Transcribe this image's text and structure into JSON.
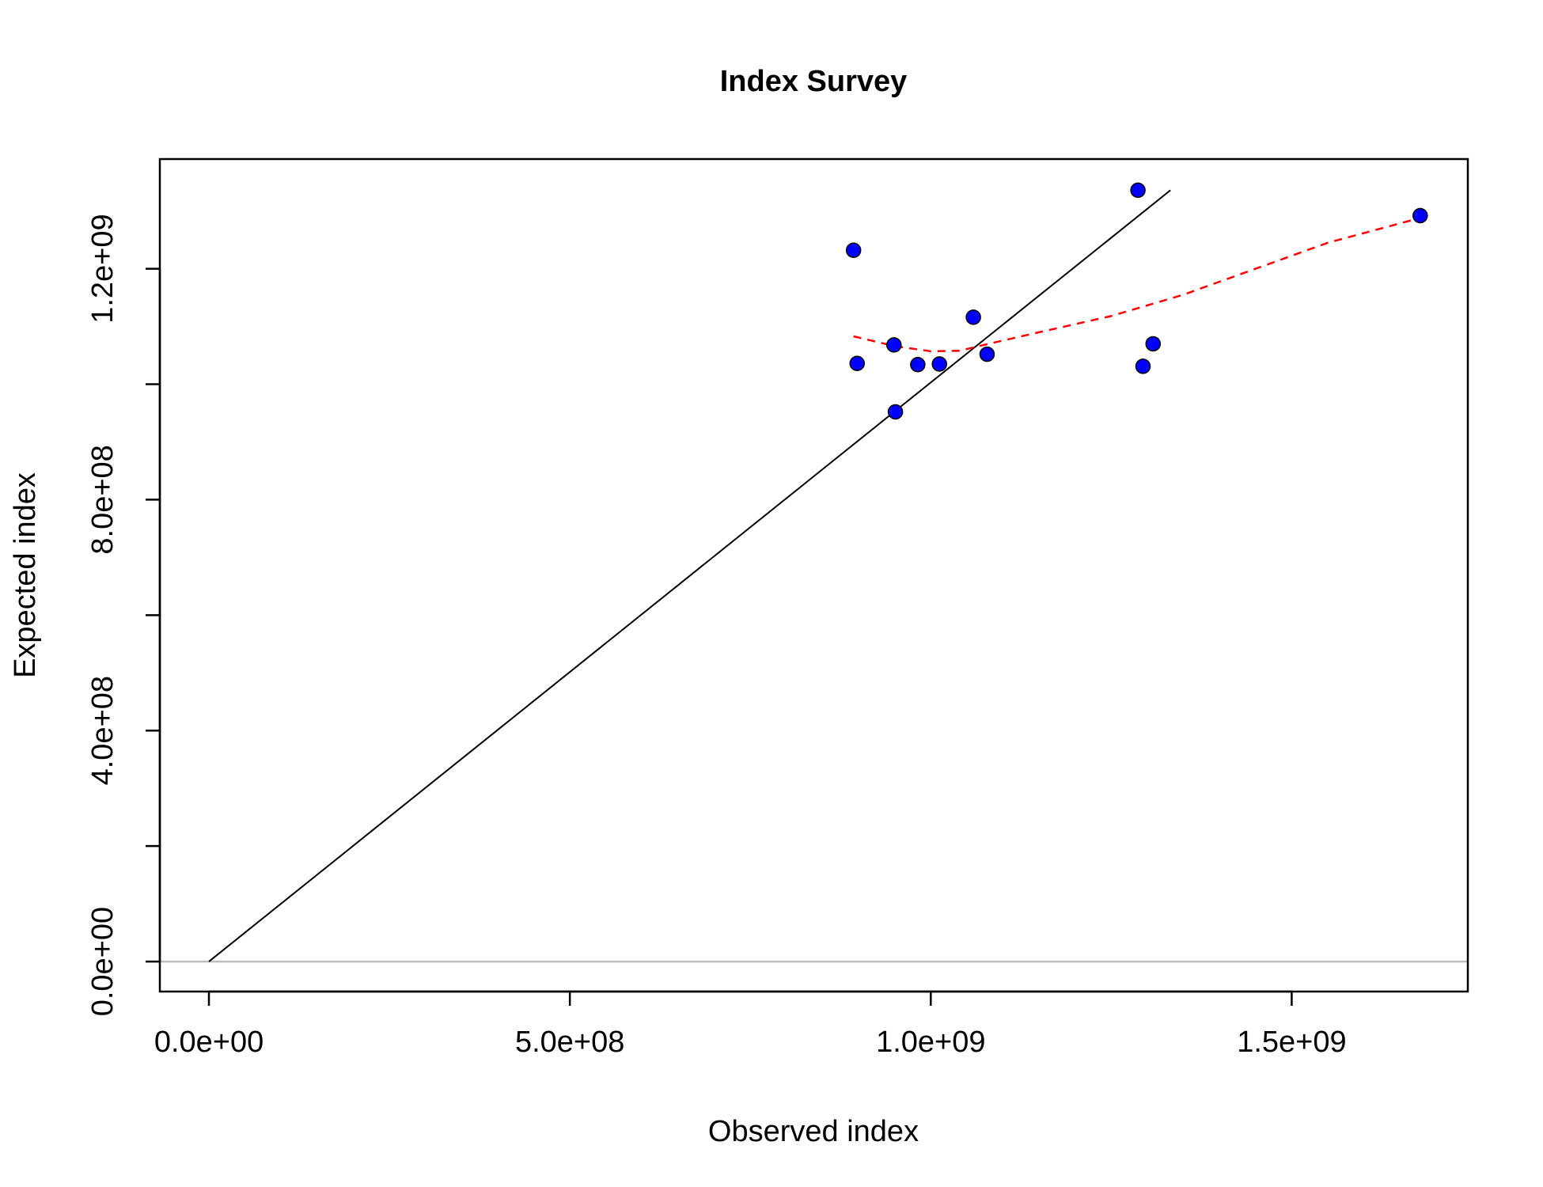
{
  "chart_data": {
    "type": "scatter",
    "title": "Index Survey",
    "xlabel": "Observed index",
    "ylabel": "Expected index",
    "xlim": [
      -68000000,
      1744000000
    ],
    "ylim": [
      -52000000,
      1390000000
    ],
    "x_ticks": [
      0,
      500000000,
      1000000000,
      1500000000
    ],
    "x_tick_labels": [
      "0.0e+00",
      "5.0e+08",
      "1.0e+09",
      "1.5e+09"
    ],
    "y_ticks": [
      0,
      200000000,
      400000000,
      600000000,
      800000000,
      1000000000,
      1200000000
    ],
    "y_tick_labels": [
      "0.0e+00",
      "",
      "4.0e+08",
      "",
      "8.0e+08",
      "",
      "1.2e+09"
    ],
    "grid": false,
    "points": {
      "color": "#0000ff",
      "x": [
        893000000,
        898000000,
        949000000,
        951000000,
        982000000,
        1012000000,
        1059000000,
        1078000000,
        1287000000,
        1294000000,
        1308000000,
        1678000000
      ],
      "y": [
        1232000000,
        1036000000,
        1068000000,
        952000000,
        1034000000,
        1035000000,
        1116000000,
        1052000000,
        1336000000,
        1031000000,
        1070000000,
        1292000000
      ]
    },
    "reference_line": {
      "color": "#000000",
      "x": [
        0,
        1332000000
      ],
      "y": [
        0,
        1336000000
      ]
    },
    "smooth_line": {
      "color": "#ff0000",
      "style": "dashed",
      "x": [
        893000000,
        950000000,
        1000000000,
        1040000000,
        1080000000,
        1150000000,
        1250000000,
        1350000000,
        1450000000,
        1550000000,
        1678000000
      ],
      "y": [
        1083000000,
        1066000000,
        1057000000,
        1058000000,
        1070000000,
        1090000000,
        1118000000,
        1155000000,
        1200000000,
        1245000000,
        1288000000
      ]
    },
    "zero_line": {
      "color": "#bebebe",
      "y": 0
    }
  }
}
